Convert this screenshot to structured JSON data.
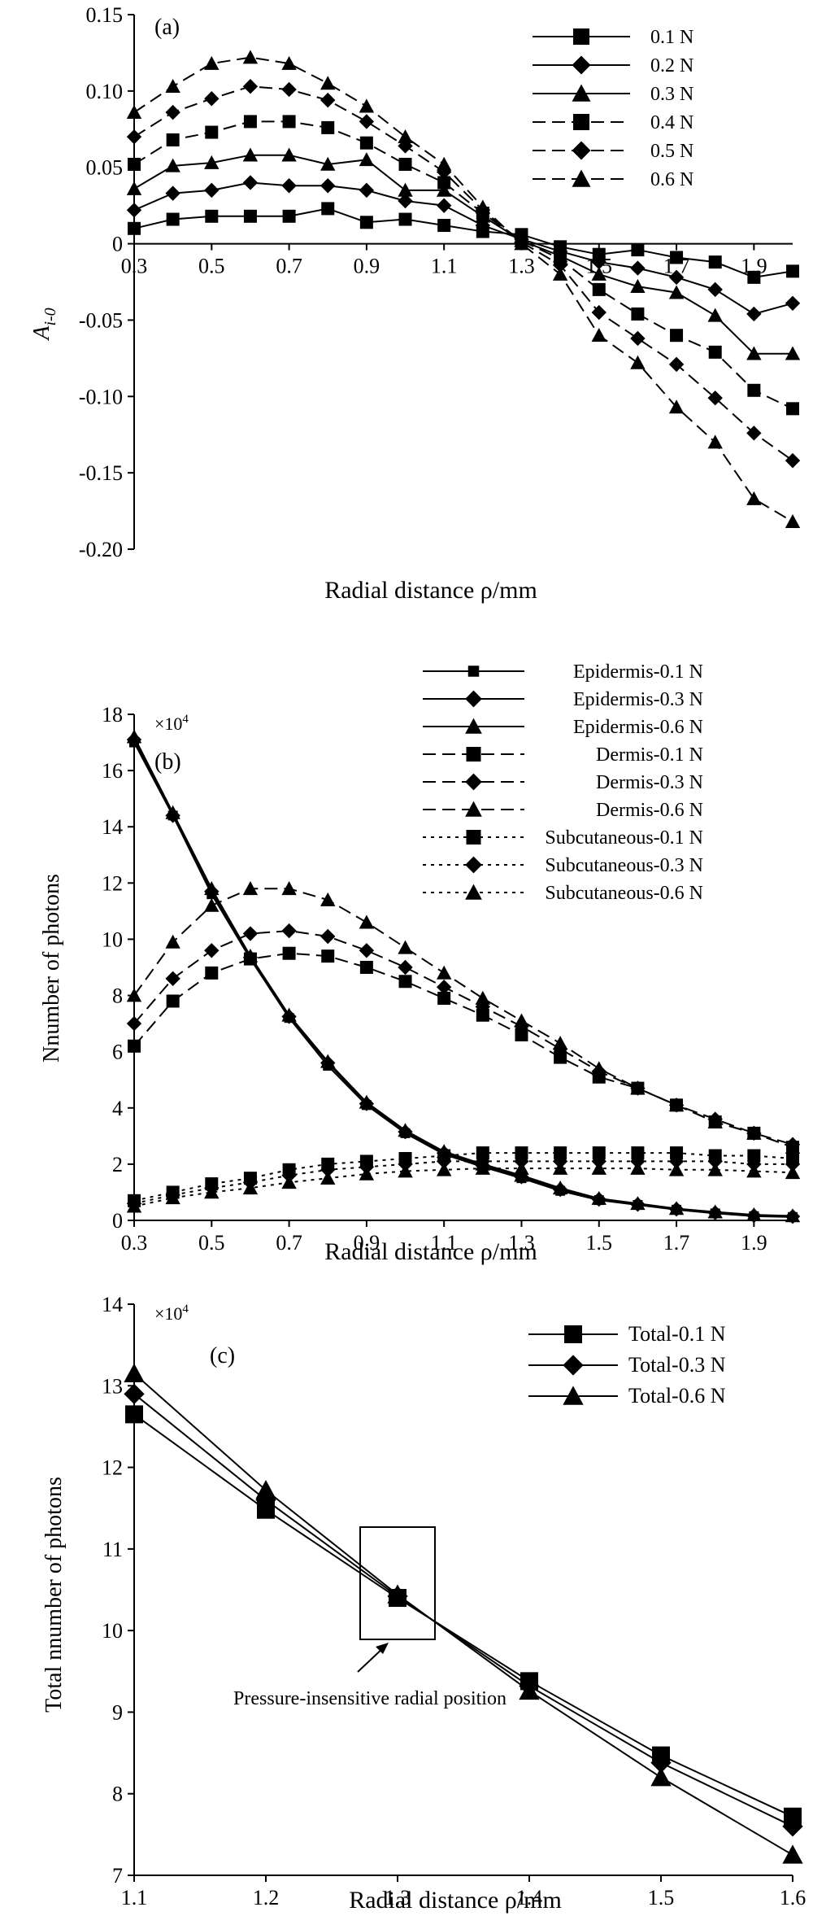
{
  "chart_data": [
    {
      "panel": "(a)",
      "type": "line",
      "xlabel": "Radial distance ρ/mm",
      "ylabel": "A",
      "ylabel_sub": "i-0",
      "xlim": [
        0.3,
        2.0
      ],
      "ylim": [
        -0.2,
        0.15
      ],
      "x_ticks": [
        "0.3",
        "0.5",
        "0.7",
        "0.9",
        "1.1",
        "1.3",
        "1.5",
        "1.7",
        "1.9"
      ],
      "y_ticks": [
        "0.15",
        "0.10",
        "0.05",
        "0",
        "-0.05",
        "-0.10",
        "-0.15",
        "-0.20"
      ],
      "legend": "top-right",
      "x": [
        0.3,
        0.4,
        0.5,
        0.6,
        0.7,
        0.8,
        0.9,
        1.0,
        1.1,
        1.2,
        1.3,
        1.4,
        1.5,
        1.6,
        1.7,
        1.8,
        1.9,
        2.0
      ],
      "series": [
        {
          "name": "0.1 N",
          "style": "solid",
          "marker": "square",
          "values": [
            0.01,
            0.016,
            0.018,
            0.018,
            0.018,
            0.023,
            0.014,
            0.016,
            0.012,
            0.008,
            0.006,
            -0.002,
            -0.007,
            -0.004,
            -0.009,
            -0.012,
            -0.022,
            -0.018
          ]
        },
        {
          "name": "0.2 N",
          "style": "solid",
          "marker": "diamond",
          "values": [
            0.022,
            0.033,
            0.035,
            0.04,
            0.038,
            0.038,
            0.035,
            0.028,
            0.025,
            0.012,
            0.003,
            -0.005,
            -0.012,
            -0.016,
            -0.022,
            -0.03,
            -0.046,
            -0.039
          ]
        },
        {
          "name": "0.3 N",
          "style": "solid",
          "marker": "triangle",
          "values": [
            0.036,
            0.051,
            0.053,
            0.058,
            0.058,
            0.052,
            0.055,
            0.035,
            0.035,
            0.018,
            0.002,
            -0.008,
            -0.02,
            -0.028,
            -0.032,
            -0.047,
            -0.072,
            -0.072
          ]
        },
        {
          "name": "0.4 N",
          "style": "dashed",
          "marker": "square",
          "values": [
            0.052,
            0.068,
            0.073,
            0.08,
            0.08,
            0.076,
            0.066,
            0.052,
            0.04,
            0.02,
            0.002,
            -0.01,
            -0.03,
            -0.046,
            -0.06,
            -0.071,
            -0.096,
            -0.108
          ]
        },
        {
          "name": "0.5 N",
          "style": "dashed",
          "marker": "diamond",
          "values": [
            0.07,
            0.086,
            0.095,
            0.103,
            0.101,
            0.094,
            0.08,
            0.064,
            0.047,
            0.022,
            0.001,
            -0.014,
            -0.045,
            -0.062,
            -0.079,
            -0.101,
            -0.124,
            -0.142
          ]
        },
        {
          "name": "0.6 N",
          "style": "dashed",
          "marker": "triangle",
          "values": [
            0.086,
            0.103,
            0.118,
            0.122,
            0.118,
            0.105,
            0.09,
            0.07,
            0.052,
            0.024,
            0.0,
            -0.02,
            -0.06,
            -0.078,
            -0.107,
            -0.13,
            -0.167,
            -0.182
          ]
        }
      ]
    },
    {
      "panel": "(b)",
      "type": "line",
      "xlabel": "Radial distance ρ/mm",
      "ylabel": "Nnumber of photons",
      "multiplier": "×10",
      "multiplier_exp": "4",
      "xlim": [
        0.3,
        2.0
      ],
      "ylim": [
        0,
        18
      ],
      "x_ticks": [
        "0.3",
        "0.5",
        "0.7",
        "0.9",
        "1.1",
        "1.3",
        "1.5",
        "1.7",
        "1.9"
      ],
      "y_ticks": [
        "0",
        "2",
        "4",
        "6",
        "8",
        "10",
        "12",
        "14",
        "16",
        "18"
      ],
      "legend": "top-right",
      "x": [
        0.3,
        0.4,
        0.5,
        0.6,
        0.7,
        0.8,
        0.9,
        1.0,
        1.1,
        1.2,
        1.3,
        1.4,
        1.5,
        1.6,
        1.7,
        1.8,
        1.9,
        2.0
      ],
      "series": [
        {
          "name": "Epidermis-0.1 N",
          "style": "solid",
          "marker": "square-small",
          "values": [
            17.0,
            14.4,
            11.6,
            9.3,
            7.2,
            5.5,
            4.1,
            3.1,
            2.35,
            1.9,
            1.5,
            1.05,
            0.72,
            0.55,
            0.38,
            0.25,
            0.15,
            0.12
          ]
        },
        {
          "name": "Epidermis-0.3 N",
          "style": "solid",
          "marker": "diamond",
          "values": [
            17.1,
            14.4,
            11.7,
            9.35,
            7.25,
            5.6,
            4.15,
            3.15,
            2.4,
            1.95,
            1.55,
            1.1,
            0.75,
            0.57,
            0.4,
            0.27,
            0.17,
            0.14
          ]
        },
        {
          "name": "Epidermis-0.6 N",
          "style": "solid",
          "marker": "triangle",
          "values": [
            17.2,
            14.5,
            11.8,
            9.4,
            7.3,
            5.65,
            4.2,
            3.2,
            2.45,
            2.0,
            1.6,
            1.15,
            0.78,
            0.6,
            0.42,
            0.3,
            0.2,
            0.16
          ]
        },
        {
          "name": "Dermis-0.1 N",
          "style": "dashed",
          "marker": "square",
          "values": [
            6.2,
            7.8,
            8.8,
            9.3,
            9.5,
            9.4,
            9.0,
            8.5,
            7.9,
            7.3,
            6.6,
            5.8,
            5.1,
            4.7,
            4.1,
            3.5,
            3.1,
            2.6
          ]
        },
        {
          "name": "Dermis-0.3 N",
          "style": "dashed",
          "marker": "diamond",
          "values": [
            7.0,
            8.6,
            9.6,
            10.2,
            10.3,
            10.1,
            9.6,
            9.0,
            8.3,
            7.6,
            6.9,
            6.1,
            5.3,
            4.7,
            4.1,
            3.6,
            3.1,
            2.7
          ]
        },
        {
          "name": "Dermis-0.6 N",
          "style": "dashed",
          "marker": "triangle",
          "values": [
            8.0,
            9.9,
            11.2,
            11.8,
            11.8,
            11.4,
            10.6,
            9.7,
            8.8,
            7.9,
            7.1,
            6.3,
            5.4,
            4.7,
            4.1,
            3.5,
            3.1,
            2.6
          ]
        },
        {
          "name": "Subcutaneous-0.1 N",
          "style": "dotted",
          "marker": "square",
          "values": [
            0.7,
            1.0,
            1.3,
            1.5,
            1.8,
            2.0,
            2.1,
            2.2,
            2.3,
            2.4,
            2.4,
            2.4,
            2.4,
            2.4,
            2.4,
            2.3,
            2.3,
            2.2
          ]
        },
        {
          "name": "Subcutaneous-0.3 N",
          "style": "dotted",
          "marker": "diamond",
          "values": [
            0.6,
            0.9,
            1.15,
            1.35,
            1.6,
            1.8,
            1.9,
            2.0,
            2.1,
            2.1,
            2.1,
            2.1,
            2.1,
            2.1,
            2.1,
            2.1,
            2.0,
            2.0
          ]
        },
        {
          "name": "Subcutaneous-0.6 N",
          "style": "dotted",
          "marker": "triangle",
          "values": [
            0.5,
            0.8,
            1.0,
            1.15,
            1.35,
            1.5,
            1.65,
            1.75,
            1.8,
            1.85,
            1.85,
            1.85,
            1.85,
            1.85,
            1.8,
            1.8,
            1.75,
            1.7
          ]
        }
      ]
    },
    {
      "panel": "(c)",
      "type": "line",
      "xlabel": "Radial distance ρ/mm",
      "ylabel": "Total nnumber of photons",
      "multiplier": "×10",
      "multiplier_exp": "4",
      "xlim": [
        1.1,
        1.6
      ],
      "ylim": [
        7,
        14
      ],
      "x_ticks": [
        "1.1",
        "1.2",
        "1.3",
        "1.4",
        "1.5",
        "1.6"
      ],
      "y_ticks": [
        "7",
        "8",
        "9",
        "10",
        "11",
        "12",
        "13",
        "14"
      ],
      "legend": "top-right",
      "annotation": "Pressure-insensitive radial position",
      "x": [
        1.1,
        1.2,
        1.3,
        1.4,
        1.5,
        1.6
      ],
      "series": [
        {
          "name": "Total-0.1 N",
          "style": "solid",
          "marker": "square",
          "values": [
            12.65,
            11.48,
            10.4,
            9.38,
            8.47,
            7.72
          ]
        },
        {
          "name": "Total-0.3 N",
          "style": "solid",
          "marker": "diamond",
          "values": [
            12.9,
            11.6,
            10.42,
            9.32,
            8.38,
            7.6
          ]
        },
        {
          "name": "Total-0.6 N",
          "style": "solid",
          "marker": "triangle",
          "values": [
            13.15,
            11.72,
            10.44,
            9.26,
            8.2,
            7.25
          ]
        }
      ]
    }
  ]
}
